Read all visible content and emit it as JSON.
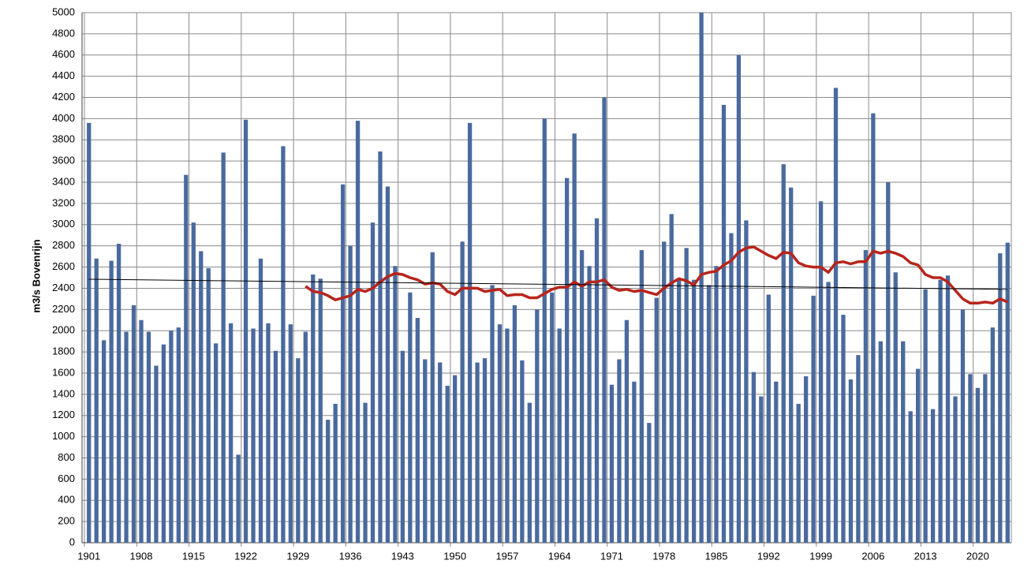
{
  "chart_data": {
    "type": "bar",
    "y_label": "m3/s Bovenrijn",
    "categories": [
      "1901",
      null,
      null,
      null,
      null,
      null,
      null,
      "1908",
      null,
      null,
      null,
      null,
      null,
      null,
      "1915",
      null,
      null,
      null,
      null,
      null,
      null,
      "1922",
      null,
      null,
      null,
      null,
      null,
      null,
      "1929",
      null,
      null,
      null,
      null,
      null,
      null,
      "1936",
      null,
      null,
      null,
      null,
      null,
      null,
      "1943",
      null,
      null,
      null,
      null,
      null,
      null,
      "1950",
      null,
      null,
      null,
      null,
      null,
      null,
      "1957",
      null,
      null,
      null,
      null,
      null,
      null,
      "1964",
      null,
      null,
      null,
      null,
      null,
      null,
      "1971",
      null,
      null,
      null,
      null,
      null,
      null,
      "1978",
      null,
      null,
      null,
      null,
      null,
      null,
      "1985",
      null,
      null,
      null,
      null,
      null,
      null,
      "1992",
      null,
      null,
      null,
      null,
      null,
      null,
      "1999",
      null,
      null,
      null,
      null,
      null,
      null,
      "2006",
      null,
      null,
      null,
      null,
      null,
      null,
      "2013",
      null,
      null,
      null,
      null,
      null,
      null,
      "2020",
      null,
      null,
      null,
      null
    ],
    "series": [
      {
        "type": "bar",
        "color": "#4a6a9e",
        "values": [
          3960,
          2680,
          1910,
          2660,
          2820,
          1990,
          2240,
          2100,
          1990,
          1670,
          1870,
          2000,
          2030,
          3470,
          3020,
          2750,
          2590,
          1880,
          3680,
          2070,
          830,
          3990,
          2020,
          2680,
          2070,
          1810,
          3740,
          2060,
          1740,
          1990,
          2530,
          2490,
          1160,
          1310,
          3380,
          2800,
          3980,
          1320,
          3020,
          3690,
          3360,
          2610,
          1810,
          2360,
          2120,
          1730,
          2740,
          1700,
          1480,
          1580,
          2840,
          3960,
          1700,
          1740,
          2430,
          2060,
          2020,
          2240,
          1720,
          1320,
          2200,
          4000,
          2360,
          2020,
          3440,
          3860,
          2760,
          2610,
          3060,
          4200,
          1490,
          1730,
          2100,
          1520,
          2760,
          1130,
          2310,
          2840,
          3100,
          2490,
          2780,
          2480,
          5000,
          2430,
          2610,
          4130,
          2920,
          4600,
          3040,
          1610,
          1380,
          2340,
          1520,
          3570,
          3350,
          1310,
          1570,
          2330,
          3220,
          2460,
          4290,
          2150,
          1540,
          1770,
          2760,
          4050,
          1900,
          3400,
          2550,
          1900,
          1240,
          1640,
          2390,
          1260,
          2480,
          2520,
          1380,
          2200,
          1590,
          1460,
          1590,
          2030,
          2730,
          2830
        ]
      },
      {
        "type": "line",
        "color": "#b8251c",
        "values": [
          null,
          null,
          null,
          null,
          null,
          null,
          null,
          null,
          null,
          null,
          null,
          null,
          null,
          null,
          null,
          null,
          null,
          null,
          null,
          null,
          null,
          null,
          null,
          null,
          null,
          null,
          null,
          null,
          null,
          2420,
          2370,
          2360,
          2330,
          2290,
          2310,
          2330,
          2390,
          2370,
          2400,
          2460,
          2510,
          2540,
          2530,
          2500,
          2480,
          2440,
          2450,
          2440,
          2370,
          2340,
          2400,
          2400,
          2400,
          2370,
          2380,
          2390,
          2330,
          2340,
          2340,
          2310,
          2310,
          2350,
          2390,
          2410,
          2410,
          2460,
          2420,
          2460,
          2460,
          2480,
          2410,
          2380,
          2390,
          2370,
          2380,
          2360,
          2340,
          2400,
          2450,
          2490,
          2470,
          2430,
          2530,
          2550,
          2560,
          2620,
          2660,
          2740,
          2780,
          2790,
          2750,
          2710,
          2680,
          2740,
          2730,
          2640,
          2610,
          2600,
          2600,
          2550,
          2640,
          2650,
          2630,
          2650,
          2650,
          2750,
          2730,
          2750,
          2730,
          2700,
          2640,
          2620,
          2530,
          2500,
          2500,
          2460,
          2380,
          2300,
          2260,
          2260,
          2270,
          2260,
          2300,
          2270
        ]
      }
    ],
    "trendline": {
      "color": "#000000",
      "values": [
        2485,
        2390
      ]
    },
    "ylim": [
      0,
      5000
    ],
    "yticks": [
      0,
      200,
      400,
      600,
      800,
      1000,
      1200,
      1400,
      1600,
      1800,
      2000,
      2200,
      2400,
      2600,
      2800,
      3000,
      3200,
      3400,
      3600,
      3800,
      4000,
      4200,
      4400,
      4600,
      4800,
      5000
    ],
    "grid": true
  }
}
